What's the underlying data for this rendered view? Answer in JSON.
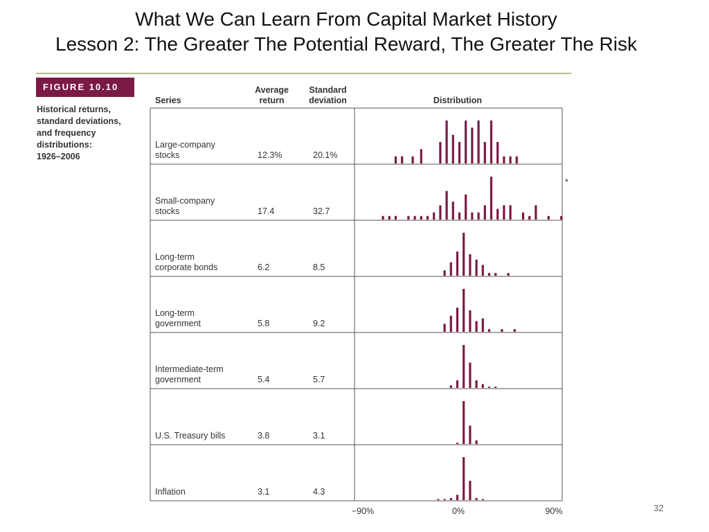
{
  "slide": {
    "title_line1": "What We Can Learn From Capital Market History",
    "title_line2": "Lesson 2: The Greater The Potential Reward, The Greater The Risk",
    "page_number": "32"
  },
  "figure": {
    "label": "FIGURE 10.10",
    "caption": [
      "Historical returns,",
      "standard deviations,",
      "and frequency",
      "distributions:",
      "1926–2006"
    ]
  },
  "columns": {
    "series": "Series",
    "avg_line1": "Average",
    "avg_line2": "return",
    "sd_line1": "Standard",
    "sd_line2": "deviation",
    "distribution": "Distribution"
  },
  "chart_data": {
    "type": "table",
    "bar_color": "#7a1a45",
    "x_axis": {
      "min": -90,
      "max": 90,
      "tick_labels": [
        "−90%",
        "0%",
        "90%"
      ]
    },
    "rows": [
      {
        "series": [
          "Large-company",
          "stocks"
        ],
        "average_return": "12.3%",
        "std_dev": "20.1%",
        "distribution": [
          [
            -59,
            1
          ],
          [
            -53,
            1
          ],
          [
            -43,
            1
          ],
          [
            -35,
            2
          ],
          [
            -17,
            3
          ],
          [
            -11,
            6
          ],
          [
            -5,
            4
          ],
          [
            1,
            3
          ],
          [
            7,
            6
          ],
          [
            13,
            5
          ],
          [
            19,
            6
          ],
          [
            25,
            3
          ],
          [
            31,
            6
          ],
          [
            37,
            3
          ],
          [
            43,
            1
          ],
          [
            49,
            1
          ],
          [
            55,
            1
          ]
        ]
      },
      {
        "series": [
          "Small-company",
          "stocks"
        ],
        "average_return": "17.4",
        "std_dev": "32.7",
        "distribution": [
          [
            -71,
            1
          ],
          [
            -65,
            1
          ],
          [
            -59,
            1
          ],
          [
            -47,
            1
          ],
          [
            -41,
            1
          ],
          [
            -35,
            1
          ],
          [
            -29,
            1
          ],
          [
            -23,
            2
          ],
          [
            -17,
            4
          ],
          [
            -11,
            8
          ],
          [
            -5,
            5
          ],
          [
            1,
            2
          ],
          [
            7,
            7
          ],
          [
            13,
            2
          ],
          [
            19,
            2
          ],
          [
            25,
            4
          ],
          [
            31,
            12
          ],
          [
            37,
            3
          ],
          [
            43,
            4
          ],
          [
            49,
            4
          ],
          [
            61,
            2
          ],
          [
            67,
            1
          ],
          [
            73,
            4
          ],
          [
            85,
            1
          ],
          [
            97,
            1
          ],
          [
            103,
            1
          ]
        ],
        "overflow_marker": "*"
      },
      {
        "series": [
          "Long-term",
          "corporate bonds"
        ],
        "average_return": "6.2",
        "std_dev": "8.5",
        "distribution": [
          [
            -13,
            2
          ],
          [
            -7,
            5
          ],
          [
            -1,
            9
          ],
          [
            5,
            16
          ],
          [
            11,
            8
          ],
          [
            17,
            6
          ],
          [
            23,
            4
          ],
          [
            29,
            1
          ],
          [
            35,
            1
          ],
          [
            47,
            1
          ]
        ]
      },
      {
        "series": [
          "Long-term",
          "government"
        ],
        "average_return": "5.8",
        "std_dev": "9.2",
        "distribution": [
          [
            -13,
            3
          ],
          [
            -7,
            6
          ],
          [
            -1,
            9
          ],
          [
            5,
            16
          ],
          [
            11,
            8
          ],
          [
            17,
            4
          ],
          [
            23,
            5
          ],
          [
            29,
            1
          ],
          [
            41,
            1
          ],
          [
            53,
            1
          ]
        ]
      },
      {
        "series": [
          "Intermediate-term",
          "government"
        ],
        "average_return": "5.4",
        "std_dev": "5.7",
        "distribution": [
          [
            -7,
            2
          ],
          [
            -1,
            6
          ],
          [
            5,
            34
          ],
          [
            11,
            20
          ],
          [
            17,
            6
          ],
          [
            23,
            3
          ],
          [
            29,
            1
          ],
          [
            35,
            1
          ]
        ]
      },
      {
        "series": [
          "U.S. Treasury bills"
        ],
        "average_return": "3.8",
        "std_dev": "3.1",
        "distribution": [
          [
            -1,
            1
          ],
          [
            5,
            35
          ],
          [
            11,
            15
          ],
          [
            17,
            3
          ]
        ]
      },
      {
        "series": [
          "Inflation"
        ],
        "average_return": "3.1",
        "std_dev": "4.3",
        "distribution": [
          [
            -19,
            1
          ],
          [
            -13,
            1
          ],
          [
            -7,
            2
          ],
          [
            -1,
            5
          ],
          [
            5,
            40
          ],
          [
            11,
            18
          ],
          [
            17,
            2
          ],
          [
            23,
            1
          ]
        ]
      }
    ]
  }
}
